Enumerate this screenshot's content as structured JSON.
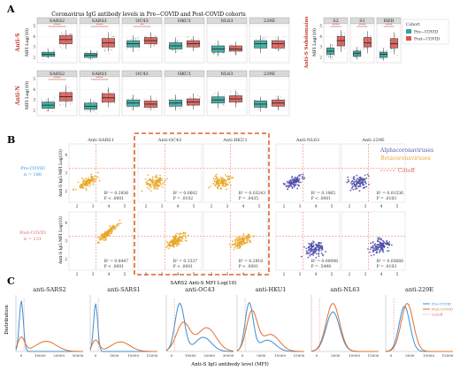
{
  "panels": {
    "a": "A",
    "b": "B",
    "c": "C"
  },
  "colors": {
    "pre": "#2aa59a",
    "post": "#d9534f",
    "alpha": "#4a4aa8",
    "beta": "#e8a520",
    "cutoff": "#e0665e",
    "highlight": "#e2622b"
  },
  "panel_a": {
    "title": "Coronavirus IgG antibody levels in Pre−COVID and Post-COVID cohorts",
    "row_s": "Anti-S",
    "row_n": "Anti-N",
    "row_sub": "Anti-S Subdomains",
    "ylabel": "MFI Log(10)",
    "legend": {
      "title": "Cohort",
      "pre": "Pre−COVID",
      "post": "Post−COVID"
    },
    "yticks": [
      "2",
      "3",
      "4",
      "5"
    ]
  },
  "chart_data": [
    {
      "type": "box",
      "title": "Coronavirus IgG antibody levels in Pre−COVID and Post-COVID cohorts",
      "row": "Anti-S",
      "ylabel": "MFI Log(10)",
      "ylim": [
        1.5,
        5.2
      ],
      "series": [
        {
          "name": "SARS2",
          "pre": [
            1.9,
            2.1,
            2.3,
            2.5,
            2.8
          ],
          "post": [
            2.8,
            3.3,
            3.7,
            4.1,
            4.6
          ],
          "signif": "****"
        },
        {
          "name": "SARS1",
          "pre": [
            1.8,
            2.0,
            2.2,
            2.4,
            2.7
          ],
          "post": [
            2.6,
            3.0,
            3.4,
            3.8,
            4.4
          ],
          "signif": "****"
        },
        {
          "name": "OC43",
          "pre": [
            2.5,
            3.0,
            3.3,
            3.6,
            4.1
          ],
          "post": [
            2.9,
            3.3,
            3.6,
            3.9,
            4.4
          ],
          "signif": "**"
        },
        {
          "name": "HKU1",
          "pre": [
            2.4,
            2.8,
            3.1,
            3.4,
            3.9
          ],
          "post": [
            2.6,
            3.0,
            3.3,
            3.6,
            4.0
          ],
          "signif": ""
        },
        {
          "name": "NL63",
          "pre": [
            2.1,
            2.5,
            2.8,
            3.1,
            3.6
          ],
          "post": [
            2.2,
            2.6,
            2.8,
            3.1,
            3.5
          ],
          "signif": ""
        },
        {
          "name": "229E",
          "pre": [
            2.4,
            2.9,
            3.3,
            3.6,
            4.1
          ],
          "post": [
            2.6,
            2.9,
            3.3,
            3.6,
            4.0
          ],
          "signif": ""
        }
      ]
    },
    {
      "type": "box",
      "row": "Anti-N",
      "ylabel": "MFI Log(10)",
      "ylim": [
        1.5,
        5.2
      ],
      "series": [
        {
          "name": "SARS2",
          "pre": [
            1.9,
            2.2,
            2.5,
            2.8,
            3.2
          ],
          "post": [
            2.3,
            2.9,
            3.3,
            3.7,
            4.4
          ],
          "signif": "****"
        },
        {
          "name": "SARS1",
          "pre": [
            1.8,
            2.1,
            2.4,
            2.7,
            3.1
          ],
          "post": [
            2.3,
            2.8,
            3.2,
            3.6,
            4.2
          ],
          "signif": "****"
        },
        {
          "name": "OC43",
          "pre": [
            2.0,
            2.4,
            2.7,
            3.0,
            3.5
          ],
          "post": [
            2.0,
            2.3,
            2.6,
            2.9,
            3.4
          ],
          "signif": ""
        },
        {
          "name": "HKU1",
          "pre": [
            2.0,
            2.4,
            2.7,
            3.0,
            3.5
          ],
          "post": [
            2.1,
            2.5,
            2.8,
            3.1,
            3.6
          ],
          "signif": ""
        },
        {
          "name": "NL63",
          "pre": [
            2.2,
            2.7,
            3.0,
            3.3,
            3.8
          ],
          "post": [
            2.3,
            2.8,
            3.1,
            3.4,
            3.9
          ],
          "signif": ""
        },
        {
          "name": "229E",
          "pre": [
            1.9,
            2.3,
            2.6,
            2.9,
            3.3
          ],
          "post": [
            2.0,
            2.4,
            2.7,
            3.0,
            3.4
          ],
          "signif": ""
        }
      ]
    },
    {
      "type": "box",
      "row": "Anti-S Subdomains",
      "ylabel": "MFI Log(10)",
      "ylim": [
        1.5,
        5.2
      ],
      "series": [
        {
          "name": "S2",
          "pre": [
            1.9,
            2.3,
            2.6,
            2.9,
            3.3
          ],
          "post": [
            2.5,
            3.1,
            3.6,
            4.0,
            4.6
          ],
          "signif": "****"
        },
        {
          "name": "S1",
          "pre": [
            1.8,
            2.1,
            2.4,
            2.6,
            3.0
          ],
          "post": [
            2.4,
            3.0,
            3.4,
            3.9,
            4.5
          ],
          "signif": "****"
        },
        {
          "name": "RBD",
          "pre": [
            1.7,
            2.0,
            2.3,
            2.5,
            2.9
          ],
          "post": [
            2.3,
            2.9,
            3.3,
            3.8,
            4.4
          ],
          "signif": "****"
        }
      ]
    },
    {
      "type": "scatter",
      "xlabel": "SARS2 Anti-S MFI Log(10)",
      "ylabel": "Anti-S IgG MFI Log(10)",
      "xticks": [
        "2",
        "3",
        "4",
        "5"
      ],
      "yticks": [
        "2",
        "3",
        "4"
      ],
      "panels": [
        {
          "title": "Anti-SARS1",
          "row": "Pre-COVID",
          "group": "beta",
          "r2": "R² = 0.2936",
          "p": "P < .0001"
        },
        {
          "title": "Anti-OC43",
          "row": "Pre-COVID",
          "group": "beta",
          "r2": "R² = 0.0602",
          "p": "P = .0102"
        },
        {
          "title": "Anti-HKU1",
          "row": "Pre-COVID",
          "group": "beta",
          "r2": "R² = 0.03243",
          "p": "P = .0435"
        },
        {
          "title": "Anti-NL63",
          "row": "Pre-COVID",
          "group": "alpha",
          "r2": "R² = 0.1965",
          "p": "P < .0001"
        },
        {
          "title": "Anti-229E",
          "row": "Pre-COVID",
          "group": "alpha",
          "r2": "R² = 0.01536",
          "p": "P = .0183"
        },
        {
          "title": "Anti-SARS1",
          "row": "Post-COVID",
          "group": "beta",
          "r2": "R² = 0.8447",
          "p": "P < .0001"
        },
        {
          "title": "Anti-OC43",
          "row": "Post-COVID",
          "group": "beta",
          "r2": "R² = 0.3337",
          "p": "P < .0001"
        },
        {
          "title": "Anti-HKU1",
          "row": "Post-COVID",
          "group": "beta",
          "r2": "R² = 0.2918",
          "p": "P < .0001"
        },
        {
          "title": "Anti-NL63",
          "row": "Post-COVID",
          "group": "alpha",
          "r2": "R² = 0.00098",
          "p": "P = .5498"
        },
        {
          "title": "Anti-229E",
          "row": "Post-COVID",
          "group": "alpha",
          "r2": "R² = 0.05666",
          "p": "P = .0183"
        }
      ]
    },
    {
      "type": "area",
      "xlabel": "Anti-S IgG antibody level (MFI)",
      "ylabel": "Distribution",
      "panels": [
        {
          "title": "anti-SARS2",
          "xticks": [
            "0",
            "10000",
            "20000",
            "30000"
          ]
        },
        {
          "title": "anti-SARS1",
          "xticks": [
            "0",
            "5000",
            "10000",
            "15000"
          ]
        },
        {
          "title": "anti-OC43",
          "xticks": [
            "0",
            "10000",
            "20000",
            "30000"
          ]
        },
        {
          "title": "anti-HKU1",
          "xticks": [
            "0",
            "5000",
            "10000",
            "15000"
          ]
        },
        {
          "title": "anti-NL63",
          "xticks": [
            "0",
            "5000",
            "10000",
            "15000"
          ]
        },
        {
          "title": "anti-229E",
          "xticks": [
            "0",
            "5000",
            "10000",
            "15000"
          ]
        }
      ]
    }
  ],
  "panel_b": {
    "row1_label": "Pre-COVID",
    "row1_n": "n = 180",
    "row2_label": "Post-COVID",
    "row2_n": "n = 131",
    "ylabel": "Anti-S IgG MFI Log(10)",
    "xlabel": "SARS2 Anti-S MFI Log(10)",
    "legend": {
      "alpha": "Alphacoronaviruses",
      "beta": "Betacoronaviruses",
      "cutoff": "Cutoff"
    }
  },
  "panel_c": {
    "ylabel": "Distribution",
    "xlabel": "Anti-S IgG antibody level (MFI)",
    "legend": {
      "pre": "Pre-COVID",
      "post": "Post-COVID",
      "cutoff": "Cutoff"
    }
  }
}
